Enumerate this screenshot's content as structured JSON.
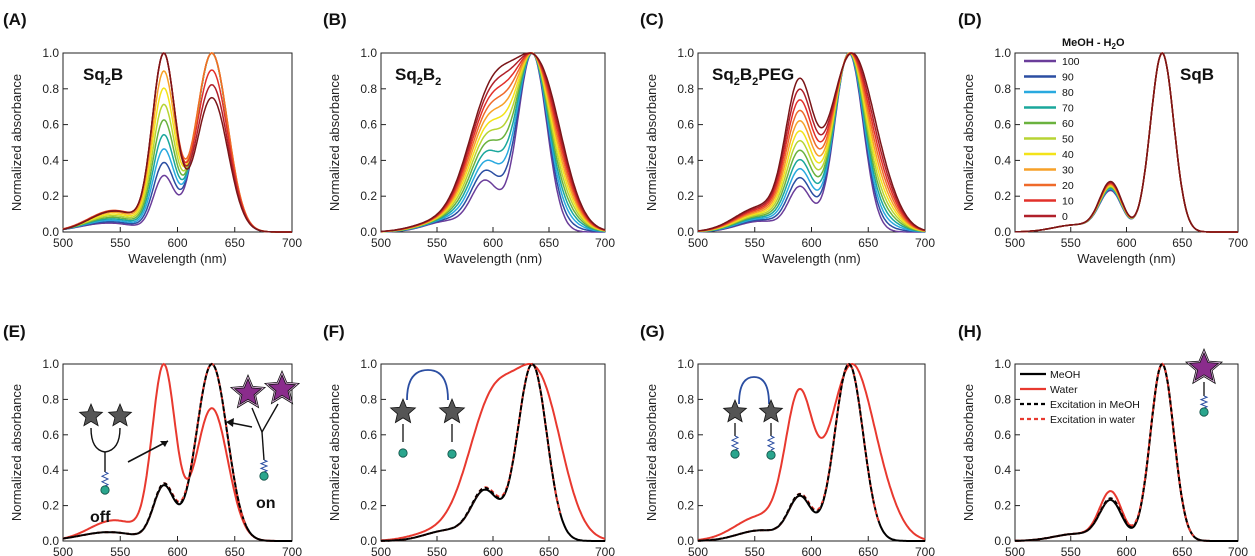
{
  "panels": [
    {
      "letter": "(A)",
      "label_main": "Sq",
      "label_sub": "2",
      "label_rest": "B",
      "label_sub2": "",
      "label_rest2": "",
      "kind": "A",
      "legend_title": ""
    },
    {
      "letter": "(B)",
      "label_main": "Sq",
      "label_sub": "2",
      "label_rest": "B",
      "label_sub2": "2",
      "label_rest2": "",
      "kind": "B",
      "legend_title": ""
    },
    {
      "letter": "(C)",
      "label_main": "Sq",
      "label_sub": "2",
      "label_rest": "B",
      "label_sub2": "2",
      "label_rest2": "PEG",
      "kind": "C",
      "legend_title": ""
    },
    {
      "letter": "(D)",
      "label_main": "SqB",
      "label_sub": "",
      "label_rest": "",
      "label_sub2": "",
      "label_rest2": "",
      "kind": "D",
      "legend_title": "MeOH - H2O"
    },
    {
      "letter": "(E)",
      "label_main": "",
      "kind": "E",
      "annot_off": "off",
      "annot_on": "on"
    },
    {
      "letter": "(F)",
      "label_main": "",
      "kind": "F"
    },
    {
      "letter": "(G)",
      "label_main": "",
      "kind": "G"
    },
    {
      "letter": "(H)",
      "label_main": "",
      "kind": "H"
    }
  ],
  "chart_data": {
    "type": "line",
    "xlabel": "Wavelength (nm)",
    "ylabel": "Normalized absorbance",
    "xlim": [
      500,
      700
    ],
    "ylim": [
      0,
      1.0
    ],
    "xticks": [
      500,
      550,
      600,
      650,
      700
    ],
    "yticks": [
      0.0,
      0.2,
      0.4,
      0.6,
      0.8,
      1.0
    ],
    "gradient_legend": {
      "title": "MeOH - H2O",
      "entries": [
        "100",
        "90",
        "80",
        "70",
        "60",
        "50",
        "40",
        "30",
        "20",
        "10",
        "0"
      ],
      "colors": [
        "#6a3d9a",
        "#2b4ea2",
        "#29a9df",
        "#1aa79c",
        "#6ab23e",
        "#b7d433",
        "#f3e319",
        "#f7a128",
        "#ef6a2a",
        "#e2302a",
        "#b0202a",
        "#7a1518"
      ]
    },
    "bottom_legend": {
      "entries": [
        "MeOH",
        "Water",
        "Excitation in MeOH",
        "Excitation in water"
      ],
      "colors": [
        "#000000",
        "#e8392f",
        "#000000",
        "#e8392f"
      ],
      "styles": [
        "solid",
        "solid",
        "dashed",
        "dashed"
      ]
    },
    "series_peaks": {
      "A": {
        "monomer_nm": 630,
        "dimer_nm": 588,
        "dimer_rel_water": 1.0,
        "monomer_rel_water": 0.77
      },
      "B": {
        "monomer_nm": 635,
        "dimer_nm": 600,
        "dimer_rel_water": 0.95
      },
      "C": {
        "monomer_nm": 633,
        "dimer_nm": 592,
        "dimer_rel_water": 0.76
      },
      "D": {
        "monomer_nm": 632,
        "dimer_nm": 585,
        "dimer_rel_water": 0.27
      }
    }
  }
}
